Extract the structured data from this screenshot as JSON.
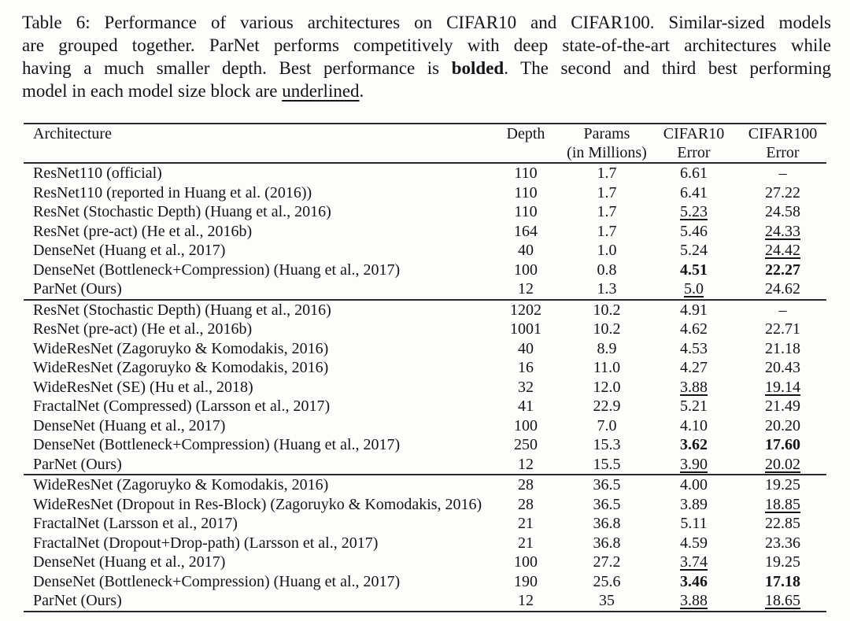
{
  "caption": {
    "lines": [
      {
        "justify": true,
        "segments": [
          {
            "t": "Table 6: Performance of various architectures on CIFAR10 and CIFAR100. Similar-sized models",
            "s": "normal"
          }
        ]
      },
      {
        "justify": true,
        "segments": [
          {
            "t": "are grouped together. ParNet performs competitively with deep state-of-the-art architectures while",
            "s": "normal"
          }
        ]
      },
      {
        "justify": true,
        "segments": [
          {
            "t": "having a much smaller depth. Best performance is ",
            "s": "normal"
          },
          {
            "t": "bolded",
            "s": "bold"
          },
          {
            "t": ". The second and third best performing",
            "s": "normal"
          }
        ]
      },
      {
        "justify": false,
        "segments": [
          {
            "t": "model in each model size block are ",
            "s": "normal"
          },
          {
            "t": "underlined",
            "s": "underline"
          },
          {
            "t": ".",
            "s": "normal"
          }
        ]
      }
    ]
  },
  "table": {
    "columns": [
      {
        "label": "Architecture",
        "sub": ""
      },
      {
        "label": "Depth",
        "sub": ""
      },
      {
        "label": "Params",
        "sub": "(in Millions)"
      },
      {
        "label": "CIFAR10",
        "sub": "Error"
      },
      {
        "label": "CIFAR100",
        "sub": "Error"
      }
    ],
    "groups": [
      {
        "rows": [
          {
            "arch": "ResNet110 (official)",
            "depth": "110",
            "params": "1.7",
            "c10": "6.61",
            "c10_style": "normal",
            "c100": "–",
            "c100_style": "normal"
          },
          {
            "arch": "ResNet110 (reported in Huang et al. (2016))",
            "depth": "110",
            "params": "1.7",
            "c10": "6.41",
            "c10_style": "normal",
            "c100": "27.22",
            "c100_style": "normal"
          },
          {
            "arch": "ResNet (Stochastic Depth) (Huang et al., 2016)",
            "depth": "110",
            "params": "1.7",
            "c10": "5.23",
            "c10_style": "underline",
            "c100": "24.58",
            "c100_style": "normal"
          },
          {
            "arch": "ResNet (pre-act) (He et al., 2016b)",
            "depth": "164",
            "params": "1.7",
            "c10": "5.46",
            "c10_style": "normal",
            "c100": "24.33",
            "c100_style": "underline"
          },
          {
            "arch": "DenseNet (Huang et al., 2017)",
            "depth": "40",
            "params": "1.0",
            "c10": "5.24",
            "c10_style": "normal",
            "c100": "24.42",
            "c100_style": "underline"
          },
          {
            "arch": "DenseNet (Bottleneck+Compression) (Huang et al., 2017)",
            "depth": "100",
            "params": "0.8",
            "c10": "4.51",
            "c10_style": "bold",
            "c100": "22.27",
            "c100_style": "bold"
          },
          {
            "arch": "ParNet (Ours)",
            "depth": "12",
            "params": "1.3",
            "c10": "5.0",
            "c10_style": "underline",
            "c100": "24.62",
            "c100_style": "normal"
          }
        ]
      },
      {
        "rows": [
          {
            "arch": "ResNet (Stochastic Depth) (Huang et al., 2016)",
            "depth": "1202",
            "params": "10.2",
            "c10": "4.91",
            "c10_style": "normal",
            "c100": "–",
            "c100_style": "normal"
          },
          {
            "arch": "ResNet (pre-act) (He et al., 2016b)",
            "depth": "1001",
            "params": "10.2",
            "c10": "4.62",
            "c10_style": "normal",
            "c100": "22.71",
            "c100_style": "normal"
          },
          {
            "arch": "WideResNet (Zagoruyko & Komodakis, 2016)",
            "depth": "40",
            "params": "8.9",
            "c10": "4.53",
            "c10_style": "normal",
            "c100": "21.18",
            "c100_style": "normal"
          },
          {
            "arch": "WideResNet (Zagoruyko & Komodakis, 2016)",
            "depth": "16",
            "params": "11.0",
            "c10": "4.27",
            "c10_style": "normal",
            "c100": "20.43",
            "c100_style": "normal"
          },
          {
            "arch": "WideResNet (SE) (Hu et al., 2018)",
            "depth": "32",
            "params": "12.0",
            "c10": "3.88",
            "c10_style": "underline",
            "c100": "19.14",
            "c100_style": "underline"
          },
          {
            "arch": "FractalNet (Compressed) (Larsson et al., 2017)",
            "depth": "41",
            "params": "22.9",
            "c10": "5.21",
            "c10_style": "normal",
            "c100": "21.49",
            "c100_style": "normal"
          },
          {
            "arch": "DenseNet (Huang et al., 2017)",
            "depth": "100",
            "params": "7.0",
            "c10": "4.10",
            "c10_style": "normal",
            "c100": "20.20",
            "c100_style": "normal"
          },
          {
            "arch": "DenseNet (Bottleneck+Compression) (Huang et al., 2017)",
            "depth": "250",
            "params": "15.3",
            "c10": "3.62",
            "c10_style": "bold",
            "c100": "17.60",
            "c100_style": "bold"
          },
          {
            "arch": "ParNet (Ours)",
            "depth": "12",
            "params": "15.5",
            "c10": "3.90",
            "c10_style": "underline",
            "c100": "20.02",
            "c100_style": "underline"
          }
        ]
      },
      {
        "rows": [
          {
            "arch": "WideResNet (Zagoruyko & Komodakis, 2016)",
            "depth": "28",
            "params": "36.5",
            "c10": "4.00",
            "c10_style": "normal",
            "c100": "19.25",
            "c100_style": "normal"
          },
          {
            "arch": "WideResNet (Dropout in Res-Block) (Zagoruyko & Komodakis, 2016)",
            "depth": "28",
            "params": "36.5",
            "c10": "3.89",
            "c10_style": "normal",
            "c100": "18.85",
            "c100_style": "underline"
          },
          {
            "arch": "FractalNet (Larsson et al., 2017)",
            "depth": "21",
            "params": "36.8",
            "c10": "5.11",
            "c10_style": "normal",
            "c100": "22.85",
            "c100_style": "normal"
          },
          {
            "arch": "FractalNet (Dropout+Drop-path) (Larsson et al., 2017)",
            "depth": "21",
            "params": "36.8",
            "c10": "4.59",
            "c10_style": "normal",
            "c100": "23.36",
            "c100_style": "normal"
          },
          {
            "arch": "DenseNet (Huang et al., 2017)",
            "depth": "100",
            "params": "27.2",
            "c10": "3.74",
            "c10_style": "underline",
            "c100": "19.25",
            "c100_style": "normal"
          },
          {
            "arch": "DenseNet (Bottleneck+Compression) (Huang et al., 2017)",
            "depth": "190",
            "params": "25.6",
            "c10": "3.46",
            "c10_style": "bold",
            "c100": "17.18",
            "c100_style": "bold"
          },
          {
            "arch": "ParNet (Ours)",
            "depth": "12",
            "params": "35",
            "c10": "3.88",
            "c10_style": "underline",
            "c100": "18.65",
            "c100_style": "underline"
          }
        ]
      }
    ]
  }
}
